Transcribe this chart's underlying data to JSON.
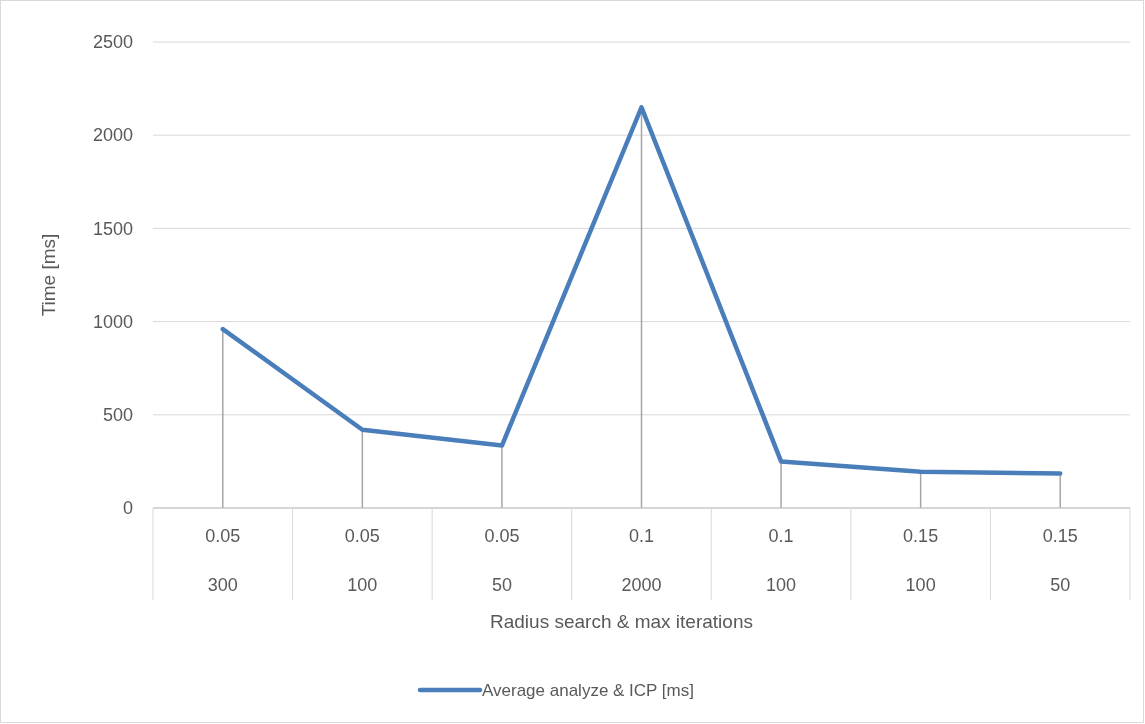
{
  "chart_data": {
    "type": "line",
    "xlabel": "Radius search & max iterations",
    "ylabel": "Time [ms]",
    "categories": [
      "0.05\n300",
      "0.05\n100",
      "0.05\n50",
      "0.1\n2000",
      "0.1\n100",
      "0.15\n100",
      "0.15\n50"
    ],
    "series": [
      {
        "name": "Average analyze & ICP [ms]",
        "color": "#4a7ebb",
        "values": [
          960,
          420,
          335,
          2150,
          250,
          195,
          185
        ],
        "errors": [
          [
            0,
            960
          ],
          [
            0,
            420
          ],
          [
            0,
            335
          ],
          [
            0,
            2150
          ],
          [
            0,
            250
          ],
          [
            0,
            195
          ],
          [
            0,
            185
          ]
        ]
      }
    ],
    "ylim": [
      0,
      2500
    ],
    "yticks": [
      0,
      500,
      1000,
      1500,
      2000,
      2500
    ],
    "grid": "y",
    "legend": "bottom",
    "marker": "none",
    "line_style": "solid"
  }
}
